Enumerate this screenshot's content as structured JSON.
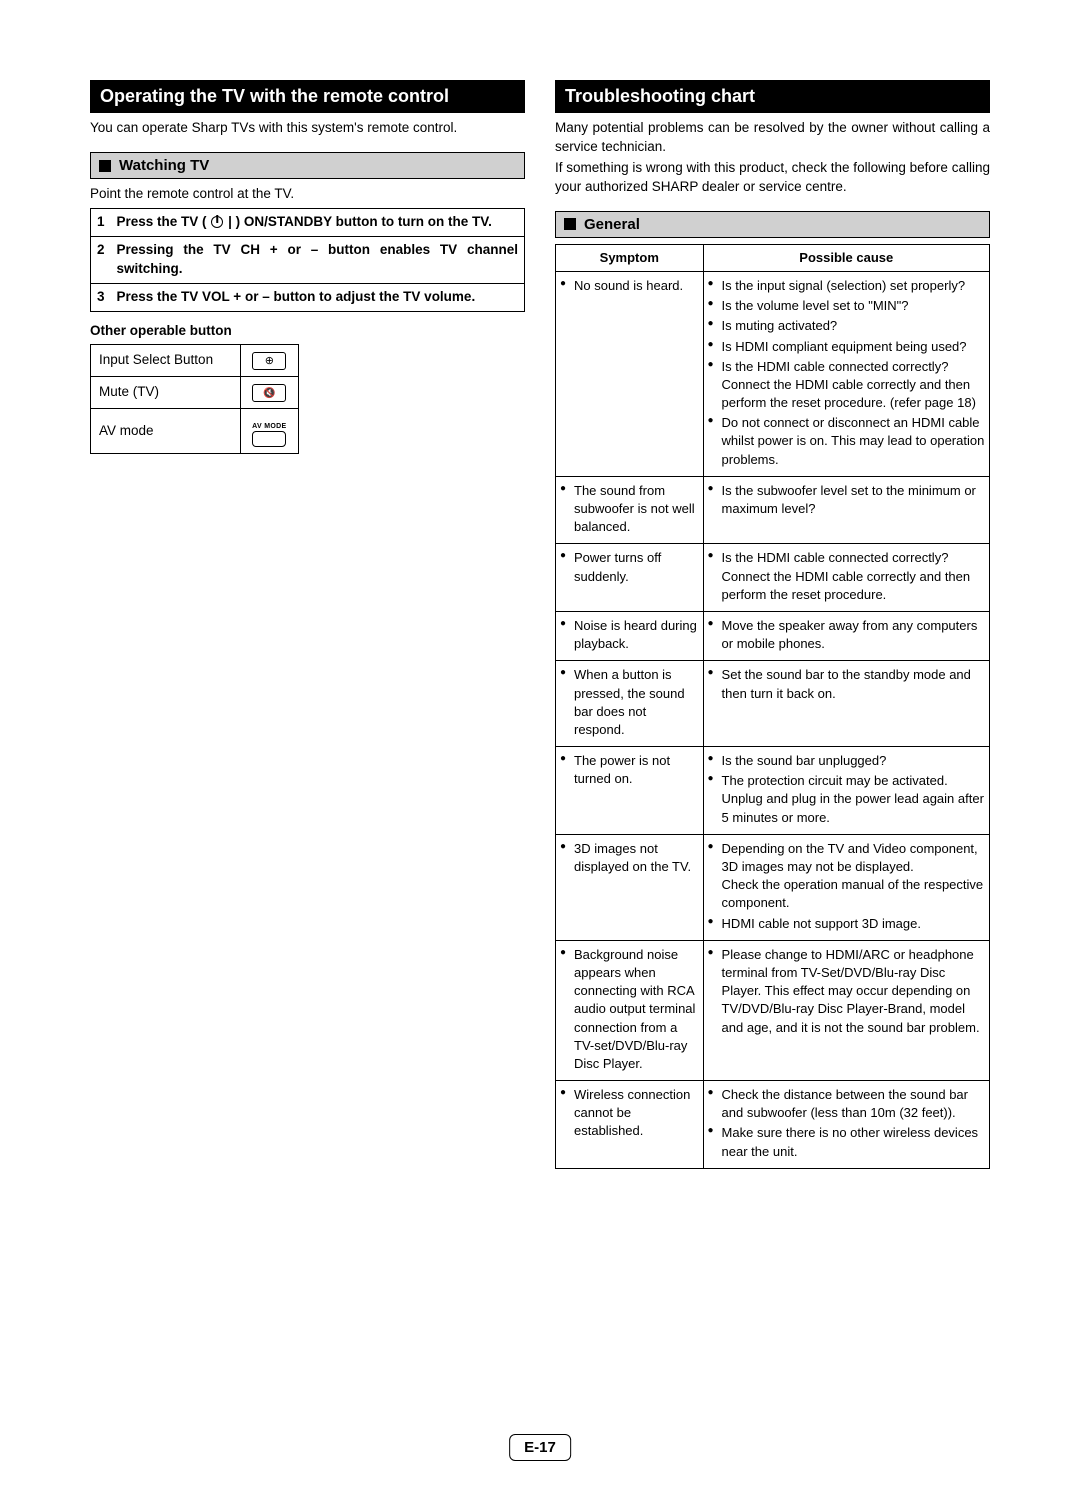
{
  "pageNumber": "E-17",
  "left": {
    "heading": "Operating the TV with the remote control",
    "intro": "You can operate Sharp TVs with this system's remote control.",
    "subHeading": "Watching TV",
    "pointText": "Point the remote control at the TV.",
    "steps": [
      {
        "n": "1",
        "text_pre": "Press the TV ( ",
        "text_post": " | ) ON/STANDBY button to turn on the TV."
      },
      {
        "n": "2",
        "text": "Pressing the TV CH + or – button enables TV channel switching."
      },
      {
        "n": "3",
        "text": "Press the TV VOL + or – button to adjust the TV volume."
      }
    ],
    "otherTitle": "Other operable button",
    "buttons": [
      {
        "label": "Input Select Button",
        "iconGlyph": "⊕"
      },
      {
        "label": "Mute (TV)",
        "iconGlyph": "🔇"
      },
      {
        "label": "AV mode",
        "iconType": "avmode",
        "iconLabel": "AV MODE"
      }
    ]
  },
  "right": {
    "heading": "Troubleshooting chart",
    "intro1": "Many potential problems can be resolved by the owner without calling a service technician.",
    "intro2": "If something is wrong with this product, check the following before calling your authorized SHARP dealer or service centre.",
    "subHeading": "General",
    "columns": {
      "symptom": "Symptom",
      "cause": "Possible cause"
    },
    "rows": [
      {
        "symptom": [
          "No sound is heard."
        ],
        "causes": [
          "Is the input signal (selection) set properly?",
          "Is the volume level set to \"MIN\"?",
          "Is muting activated?",
          "Is HDMI compliant equipment being used?",
          "Is the HDMI cable connected correctly?\nConnect the HDMI cable correctly and then perform the reset procedure. (refer page 18)",
          "Do not connect or disconnect an HDMI cable whilst power is on. This may lead to operation problems."
        ]
      },
      {
        "symptom": [
          "The sound from subwoofer is not well balanced."
        ],
        "causes": [
          "Is the subwoofer level set to the minimum or maximum level?"
        ]
      },
      {
        "symptom": [
          "Power turns off suddenly."
        ],
        "causes": [
          "Is the HDMI cable connected correctly? Connect the HDMI cable correctly and then perform the reset procedure."
        ]
      },
      {
        "symptom": [
          "Noise is heard during playback."
        ],
        "causes": [
          "Move the speaker away from any computers or mobile phones."
        ]
      },
      {
        "symptom": [
          "When a button is pressed, the sound bar does not respond."
        ],
        "causes": [
          "Set the sound bar to the standby mode and then turn it back on."
        ]
      },
      {
        "symptom": [
          "The power is not turned on."
        ],
        "causes": [
          "Is the sound bar unplugged?",
          "The protection circuit may be activated. Unplug and plug in the power lead again after 5 minutes or more."
        ]
      },
      {
        "symptom": [
          "3D images not displayed on the TV."
        ],
        "causes": [
          "Depending on the TV and Video component, 3D images may not be displayed.\nCheck the operation manual of the respective component.",
          "HDMI cable not support 3D image."
        ]
      },
      {
        "symptom": [
          "Background noise appears when connecting with RCA audio output terminal connection from a TV-set/DVD/Blu-ray Disc Player."
        ],
        "causes": [
          "Please change to HDMI/ARC or headphone terminal from TV-Set/DVD/Blu-ray Disc Player. This effect may occur depending on TV/DVD/Blu-ray Disc Player-Brand, model and age, and it is not the sound bar problem."
        ]
      },
      {
        "symptom": [
          "Wireless connection cannot be established."
        ],
        "causes": [
          "Check the distance between the sound bar and subwoofer (less than 10m (32 feet)).",
          "Make sure there is no other wireless devices near the unit."
        ]
      }
    ]
  }
}
